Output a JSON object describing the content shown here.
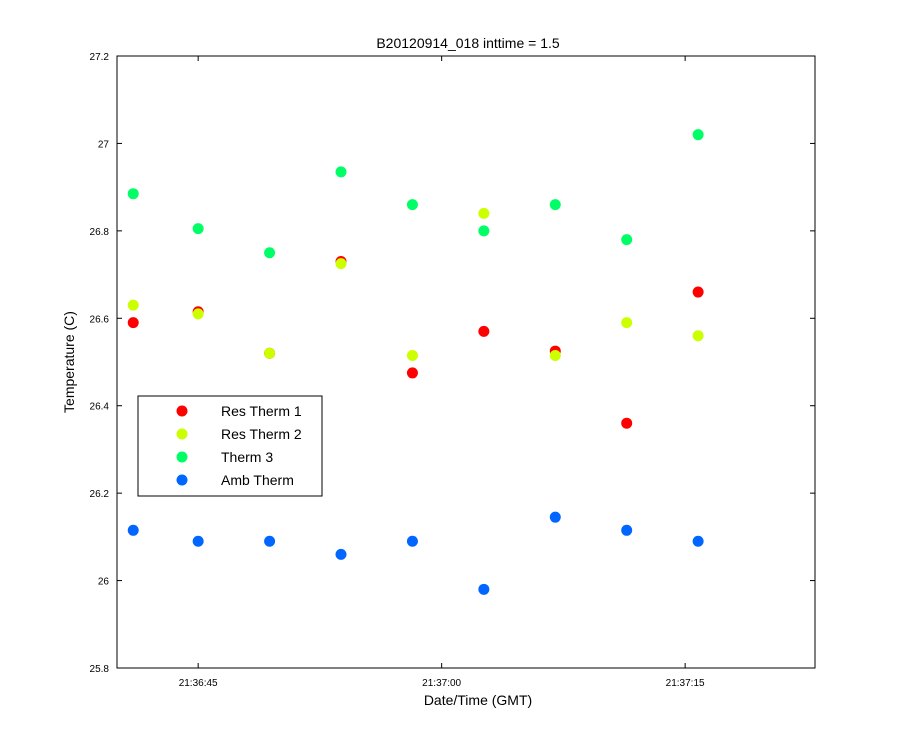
{
  "chart_data": {
    "type": "scatter",
    "title": "B20120914_018 inttime = 1.5",
    "xlabel": "Date/Time (GMT)",
    "ylabel": "Temperature (C)",
    "x_ticks": [
      "21:36:45",
      "21:37:00",
      "21:37:15"
    ],
    "x_tick_seconds": [
      0,
      15,
      30
    ],
    "x_range_seconds": [
      -5,
      38
    ],
    "ylim": [
      25.8,
      27.2
    ],
    "y_ticks": [
      "25.8",
      "26",
      "26.2",
      "26.4",
      "26.6",
      "26.8",
      "27",
      "27.2"
    ],
    "grid": false,
    "legend_position": "middle-left",
    "x_seconds": [
      -4,
      0,
      4.4,
      8.8,
      13.2,
      17.6,
      22,
      26.4,
      30.8
    ],
    "series": [
      {
        "name": "Res Therm 1",
        "color": "#ff0000",
        "y": [
          26.59,
          26.615,
          26.52,
          26.73,
          26.475,
          26.57,
          26.525,
          26.36,
          26.66
        ]
      },
      {
        "name": "Res Therm 2",
        "color": "#ccff00",
        "y": [
          26.63,
          26.61,
          26.52,
          26.725,
          26.515,
          26.84,
          26.515,
          26.59,
          26.56
        ]
      },
      {
        "name": "Therm 3",
        "color": "#00ff66",
        "y": [
          26.885,
          26.805,
          26.75,
          26.935,
          26.86,
          26.8,
          26.86,
          26.78,
          27.02
        ]
      },
      {
        "name": "Amb Therm",
        "color": "#0066ff",
        "y": [
          26.115,
          26.09,
          26.09,
          26.06,
          26.09,
          25.98,
          26.145,
          26.115,
          26.09
        ]
      }
    ]
  }
}
